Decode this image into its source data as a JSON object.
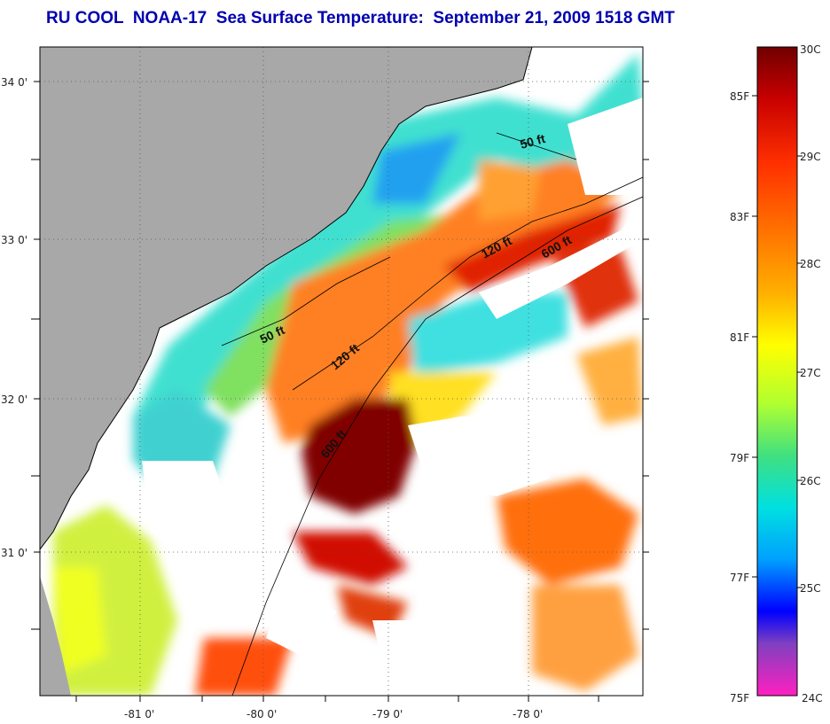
{
  "title": "RU COOL  NOAA-17  Sea Surface Temperature:  September 21, 2009 1518 GMT",
  "map": {
    "lat_labels": [
      "34 0'",
      "33 0'",
      "32 0'",
      "31 0'"
    ],
    "lon_labels": [
      "-81 0'",
      "-80 0'",
      "-79 0'",
      "-78 0'"
    ],
    "contour_labels": [
      "50 ft",
      "50 ft",
      "120 ft",
      "120 ft",
      "600 ft",
      "600 ft"
    ],
    "colors": {
      "land": "#a8a8a8",
      "cloud": "#ffffff"
    }
  },
  "colorbar": {
    "celsius_labels": [
      "30C",
      "29C",
      "28C",
      "27C",
      "26C",
      "25C",
      "24C"
    ],
    "fahrenheit_labels": [
      "85F",
      "83F",
      "81F",
      "79F",
      "77F",
      "75F"
    ],
    "gradient_stops": [
      "#700000",
      "#c80000",
      "#ff3000",
      "#ff7000",
      "#ffb000",
      "#ffff00",
      "#b0ff30",
      "#40e080",
      "#00e0e0",
      "#00a0ff",
      "#0000ff",
      "#8040c0",
      "#ff20c0"
    ]
  }
}
